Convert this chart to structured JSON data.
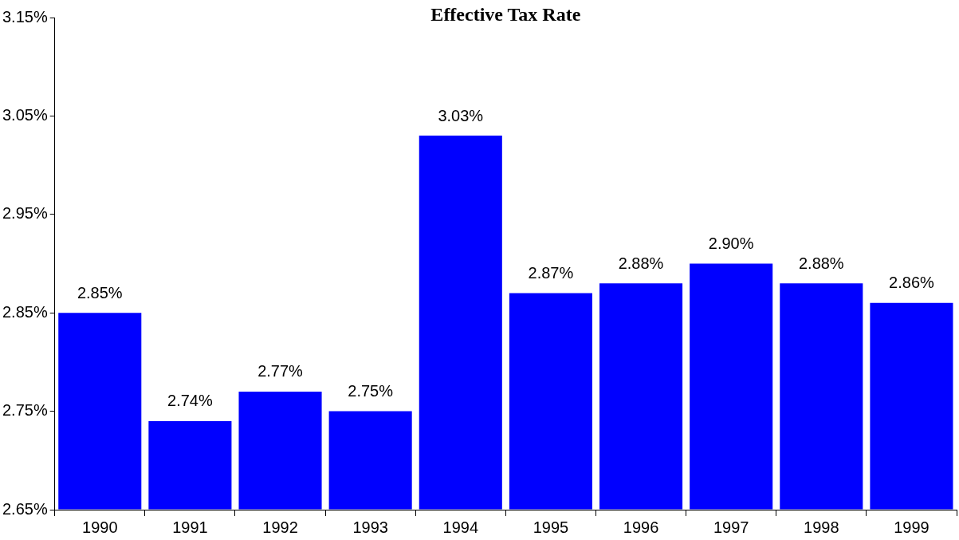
{
  "chart_data": {
    "type": "bar",
    "title": "Effective Tax Rate",
    "categories": [
      "1990",
      "1991",
      "1992",
      "1993",
      "1994",
      "1995",
      "1996",
      "1997",
      "1998",
      "1999"
    ],
    "values": [
      2.85,
      2.74,
      2.77,
      2.75,
      3.03,
      2.87,
      2.88,
      2.9,
      2.88,
      2.86
    ],
    "value_labels": [
      "2.85%",
      "2.74%",
      "2.77%",
      "2.75%",
      "3.03%",
      "2.87%",
      "2.88%",
      "2.90%",
      "2.88%",
      "2.86%"
    ],
    "color": "#0000ff",
    "ylim": [
      2.65,
      3.15
    ],
    "yticks": [
      {
        "value": 2.65,
        "label": "2.65%"
      },
      {
        "value": 2.75,
        "label": "2.75%"
      },
      {
        "value": 2.85,
        "label": "2.85%"
      },
      {
        "value": 2.95,
        "label": "2.95%"
      },
      {
        "value": 3.05,
        "label": "3.05%"
      },
      {
        "value": 3.15,
        "label": "3.15%"
      }
    ],
    "grid": false,
    "legend": false
  }
}
